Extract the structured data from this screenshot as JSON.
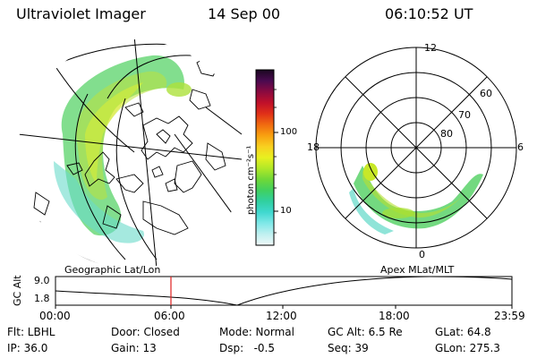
{
  "header": {
    "title": "Ultraviolet Imager",
    "date": "14 Sep 00",
    "time": "06:10:52 UT"
  },
  "colorbar": {
    "unit_label": "photon cm⁻²s⁻¹",
    "ticks": [
      "100",
      "10"
    ],
    "colors": [
      "#1a0820",
      "#4a0a50",
      "#8a0a40",
      "#c0102a",
      "#e03018",
      "#f06a10",
      "#f8a010",
      "#f8d020",
      "#e8f020",
      "#b0e828",
      "#70d838",
      "#40d060",
      "#30d0a0",
      "#40d8d0",
      "#80e8e8",
      "#c0f0f0",
      "#f0f8f8"
    ]
  },
  "panels": {
    "left_label": "Geographic Lat/Lon",
    "right_label": "Apex  MLat/MLT",
    "mlt_labels": {
      "top": "12",
      "left": "18",
      "right": "6",
      "bottom": "0"
    },
    "mlat_labels": [
      "60",
      "70",
      "80"
    ]
  },
  "timeline": {
    "axis_label": "GC Alt",
    "y_labels": [
      "9.0",
      "1.8"
    ],
    "x_labels": [
      "00:00",
      "06:00",
      "12:00",
      "18:00",
      "23:59"
    ],
    "marker_color": "#e02020"
  },
  "info": {
    "row1": [
      "Flt: LBHL",
      "Door: Closed",
      "Mode: Normal",
      "GC Alt: 6.5 Re",
      "GLat: 64.8"
    ],
    "row2": [
      "IP: 36.0",
      "Gain: 13",
      "Dsp:   -0.5",
      "Seq: 39",
      "GLon: 275.3"
    ]
  }
}
